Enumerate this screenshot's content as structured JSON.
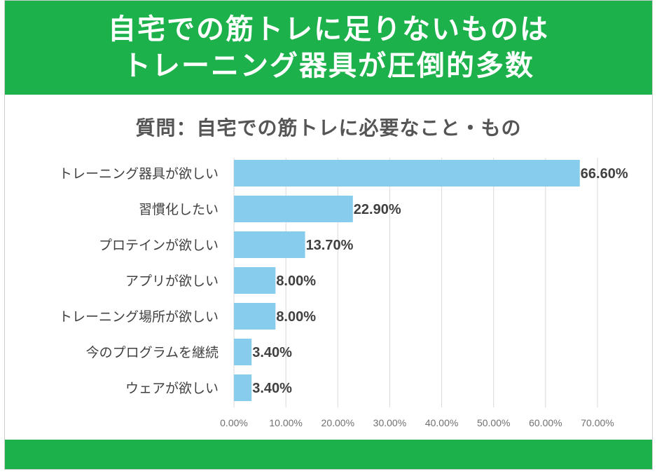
{
  "banner": {
    "line1": "自宅での筋トレに足りないものは",
    "line2": "トレーニング器具が圧倒的多数"
  },
  "colors": {
    "banner": "#1db14b",
    "bar": "#87ccec",
    "grid": "#d9d9d9"
  },
  "chart_data": {
    "type": "bar",
    "orientation": "horizontal",
    "title": "質問：自宅での筋トレに必要なこと・もの",
    "categories": [
      "トレーニング器具が欲しい",
      "習慣化したい",
      "プロテインが欲しい",
      "アプリが欲しい",
      "トレーニング場所が欲しい",
      "今のプログラムを継続",
      "ウェアが欲しい"
    ],
    "values": [
      66.6,
      22.9,
      13.7,
      8.0,
      8.0,
      3.4,
      3.4
    ],
    "value_labels": [
      "66.60%",
      "22.90%",
      "13.70%",
      "8.00%",
      "8.00%",
      "3.40%",
      "3.40%"
    ],
    "x_ticks": [
      0,
      10,
      20,
      30,
      40,
      50,
      60,
      70
    ],
    "x_tick_labels": [
      "0.00%",
      "10.00%",
      "20.00%",
      "30.00%",
      "40.00%",
      "50.00%",
      "60.00%",
      "70.00%"
    ],
    "xlim": [
      0,
      70
    ],
    "grid": true,
    "legend": "none"
  }
}
